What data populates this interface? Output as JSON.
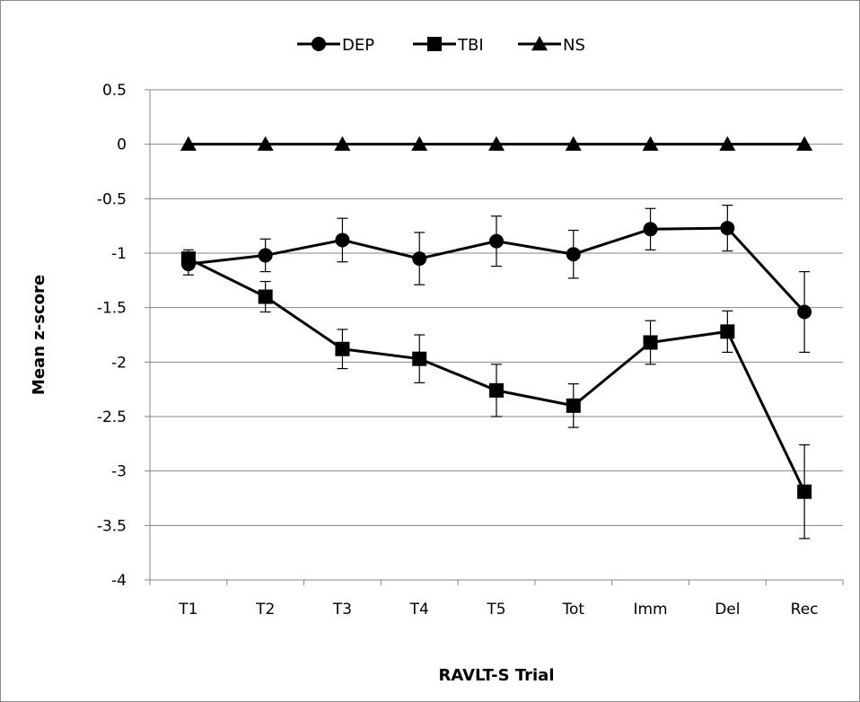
{
  "chart_data": {
    "type": "line",
    "categories": [
      "T1",
      "T2",
      "T3",
      "T4",
      "T5",
      "Tot",
      "Imm",
      "Del",
      "Rec"
    ],
    "series": [
      {
        "name": "DEP",
        "marker": "circle",
        "values": [
          -1.1,
          -1.02,
          -0.88,
          -1.05,
          -0.89,
          -1.01,
          -0.78,
          -0.77,
          -1.54
        ],
        "error": [
          0.1,
          0.15,
          0.2,
          0.24,
          0.23,
          0.22,
          0.19,
          0.21,
          0.37
        ]
      },
      {
        "name": "TBI",
        "marker": "square",
        "values": [
          -1.05,
          -1.4,
          -1.88,
          -1.97,
          -2.26,
          -2.4,
          -1.82,
          -1.72,
          -3.19
        ],
        "error": [
          0.08,
          0.14,
          0.18,
          0.22,
          0.24,
          0.2,
          0.2,
          0.19,
          0.43
        ]
      },
      {
        "name": "NS",
        "marker": "triangle",
        "values": [
          0,
          0,
          0,
          0,
          0,
          0,
          0,
          0,
          0
        ],
        "error": [
          0,
          0,
          0,
          0,
          0,
          0,
          0,
          0,
          0
        ]
      }
    ],
    "ylim": [
      -4,
      0.5
    ],
    "yticks": [
      "0.5",
      "0",
      "-0.5",
      "-1",
      "-1.5",
      "-2",
      "-2.5",
      "-3",
      "-3.5",
      "-4"
    ],
    "ytick_values": [
      0.5,
      0,
      -0.5,
      -1,
      -1.5,
      -2,
      -2.5,
      -3,
      -3.5,
      -4
    ],
    "xlabel": "RAVLT-S Trial",
    "ylabel": "Mean z-score",
    "grid": "horizontal",
    "legend_position": "top",
    "line_color": "#000000",
    "grid_color": "#868686"
  }
}
